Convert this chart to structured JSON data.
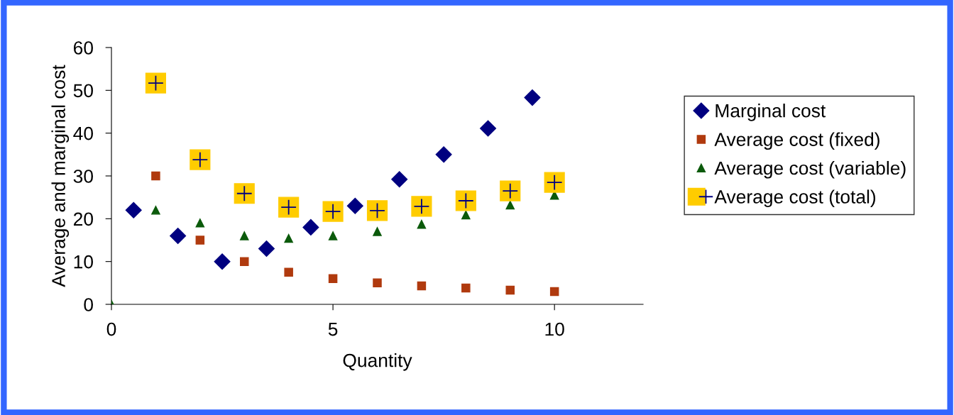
{
  "chart_data": {
    "type": "scatter",
    "xlabel": "Quantity",
    "ylabel": "Average and marginal cost",
    "xlim": [
      0,
      12
    ],
    "xticks": [
      0,
      5,
      10
    ],
    "ylim": [
      0,
      60
    ],
    "yticks": [
      0,
      10,
      20,
      30,
      40,
      50,
      60
    ],
    "grid": false,
    "legend": "right",
    "series": [
      {
        "name": "Marginal cost",
        "color": "#000080",
        "marker": "diamond",
        "x": [
          0.5,
          1.5,
          2.5,
          3.5,
          4.5,
          5.5,
          6.5,
          7.5,
          8.5,
          9.5
        ],
        "values": [
          22,
          16,
          10,
          13,
          18,
          23,
          29.2,
          35,
          41.1,
          48.3
        ]
      },
      {
        "name": "Average cost (fixed)",
        "color": "#b03a0e",
        "marker": "square",
        "x": [
          1,
          2,
          3,
          4,
          5,
          6,
          7,
          8,
          9,
          10
        ],
        "values": [
          30,
          15,
          10,
          7.5,
          6,
          5,
          4.3,
          3.8,
          3.3,
          3
        ]
      },
      {
        "name": "Average cost (variable)",
        "color": "#0b5a0b",
        "marker": "triangle",
        "x": [
          0,
          1,
          2,
          3,
          4,
          5,
          6,
          7,
          8,
          9,
          10
        ],
        "values": [
          0,
          22,
          19,
          16,
          15.4,
          16,
          17,
          18.7,
          20.9,
          23.2,
          25.5
        ]
      },
      {
        "name": "Average cost (total)",
        "color": "#ffcc00",
        "marker": "square",
        "x": [
          1,
          2,
          3,
          4,
          5,
          6,
          7,
          8,
          9,
          10
        ],
        "values": [
          51.7,
          33.8,
          25.9,
          22.7,
          21.7,
          21.9,
          22.9,
          24.2,
          26.5,
          28.5
        ]
      }
    ]
  }
}
